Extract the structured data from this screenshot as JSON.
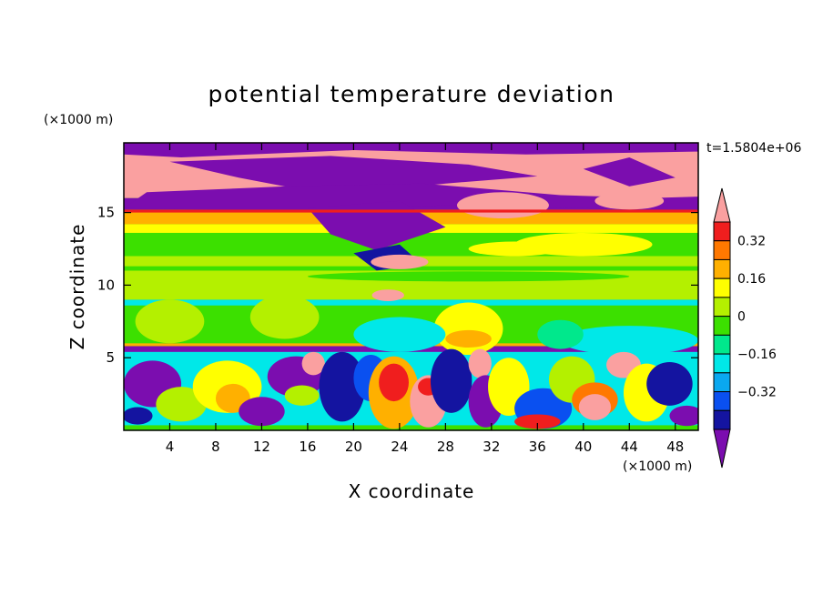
{
  "chart_data": {
    "type": "heatmap",
    "title": "potential temperature deviation",
    "xlabel": "X coordinate",
    "ylabel": "Z coordinate",
    "x_units": "(×1000 m)",
    "y_units": "(×1000 m)",
    "time_label": "t=1.5804e+06",
    "xlim": [
      0,
      50
    ],
    "ylim": [
      0,
      19.8
    ],
    "x_ticks": [
      "4",
      "8",
      "12",
      "16",
      "20",
      "24",
      "28",
      "32",
      "36",
      "40",
      "44",
      "48"
    ],
    "y_ticks": [
      "5",
      "10",
      "15"
    ],
    "colorbar": {
      "levels": [
        -0.4,
        -0.32,
        -0.24,
        -0.16,
        -0.08,
        0,
        0.08,
        0.16,
        0.24,
        0.32,
        0.4
      ],
      "tick_labels": [
        "0.32",
        "0.16",
        "0",
        "−0.16",
        "−0.32"
      ],
      "tick_values": [
        0.32,
        0.16,
        0,
        -0.16,
        -0.32
      ],
      "colors": [
        "#7B0DAF",
        "#1414A0",
        "#0A50F0",
        "#0AA8F0",
        "#00E8E8",
        "#00E88C",
        "#3CE000",
        "#B4F000",
        "#FFFF00",
        "#FFB000",
        "#FF7800",
        "#F01E1E",
        "#FAA0A0"
      ],
      "extend": "both"
    },
    "grid": false
  }
}
